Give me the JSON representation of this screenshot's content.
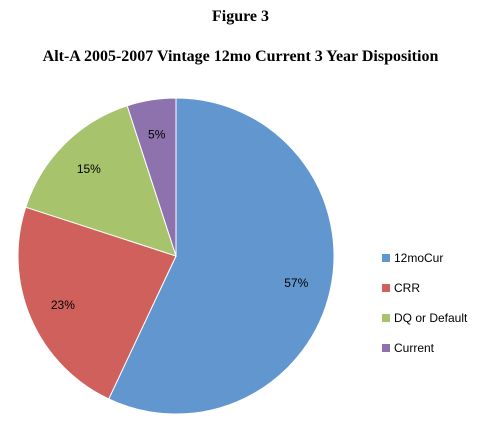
{
  "figure_label": "Figure 3",
  "chart_data": {
    "type": "pie",
    "title": "Alt-A 2005-2007 Vintage 12mo Current 3 Year Disposition",
    "categories": [
      "12moCur",
      "CRR",
      "DQ or Default",
      "Current"
    ],
    "values": [
      57,
      23,
      15,
      5
    ],
    "labels": [
      "57%",
      "23%",
      "15%",
      "5%"
    ],
    "colors": [
      "#6196CF",
      "#D0605B",
      "#A7C36B",
      "#8D72AE"
    ],
    "start_angle_deg": 0,
    "direction": "clockwise",
    "legend": "right"
  }
}
